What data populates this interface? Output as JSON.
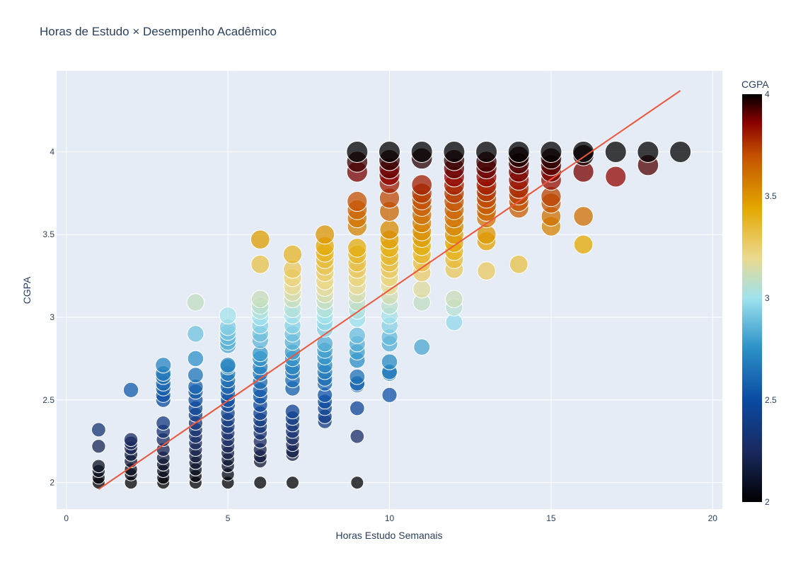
{
  "chart_data": {
    "type": "scatter",
    "title": "Horas de Estudo × Desempenho Acadêmico",
    "xlabel": "Horas Estudo Semanais",
    "ylabel": "CGPA",
    "xlim": [
      -0.3,
      20.3
    ],
    "ylim": [
      1.84,
      4.49
    ],
    "x_ticks": [
      0,
      5,
      10,
      15,
      20
    ],
    "y_ticks": [
      2,
      2.5,
      3,
      3.5,
      4
    ],
    "x_tick_labels": [
      "0",
      "5",
      "10",
      "15",
      "20"
    ],
    "y_tick_labels": [
      "2",
      "2.5",
      "3",
      "3.5",
      "4"
    ],
    "grid": true,
    "colorbar": {
      "title": "CGPA",
      "range": [
        2,
        4
      ],
      "ticks": [
        2,
        2.5,
        3,
        3.5,
        4
      ],
      "tick_labels": [
        "2",
        "2.5",
        "3",
        "3.5",
        "4"
      ],
      "colorscale": [
        [
          0.0,
          "#000000"
        ],
        [
          0.125,
          "#1a2a60"
        ],
        [
          0.25,
          "#0a4aa2"
        ],
        [
          0.38,
          "#2e93c8"
        ],
        [
          0.5,
          "#9fe2ee"
        ],
        [
          0.6,
          "#ecd98e"
        ],
        [
          0.72,
          "#e3a800"
        ],
        [
          0.85,
          "#c45100"
        ],
        [
          0.93,
          "#8c0000"
        ],
        [
          1.0,
          "#000000"
        ]
      ]
    },
    "trendline": {
      "x": [
        1,
        19
      ],
      "y": [
        1.96,
        4.37
      ],
      "color": "#ef553b"
    },
    "colors": {
      "plot_bg": "#e5ecf6",
      "grid": "#ffffff",
      "text": "#2a3f5f"
    },
    "points": [
      [
        1,
        2.0
      ],
      [
        1,
        2.03
      ],
      [
        1,
        2.07
      ],
      [
        1,
        2.1
      ],
      [
        1,
        2.22
      ],
      [
        1,
        2.32
      ],
      [
        2,
        2.0
      ],
      [
        2,
        2.05
      ],
      [
        2,
        2.08
      ],
      [
        2,
        2.13
      ],
      [
        2,
        2.17
      ],
      [
        2,
        2.21
      ],
      [
        2,
        2.24
      ],
      [
        2,
        2.26
      ],
      [
        2,
        2.56
      ],
      [
        3,
        2.0
      ],
      [
        3,
        2.03
      ],
      [
        3,
        2.07
      ],
      [
        3,
        2.11
      ],
      [
        3,
        2.15
      ],
      [
        3,
        2.2
      ],
      [
        3,
        2.26
      ],
      [
        3,
        2.31
      ],
      [
        3,
        2.36
      ],
      [
        3,
        2.5
      ],
      [
        3,
        2.53
      ],
      [
        3,
        2.57
      ],
      [
        3,
        2.6
      ],
      [
        3,
        2.64
      ],
      [
        3,
        2.66
      ],
      [
        3,
        2.71
      ],
      [
        4,
        2.0
      ],
      [
        4,
        2.04
      ],
      [
        4,
        2.08
      ],
      [
        4,
        2.12
      ],
      [
        4,
        2.16
      ],
      [
        4,
        2.2
      ],
      [
        4,
        2.24
      ],
      [
        4,
        2.28
      ],
      [
        4,
        2.32
      ],
      [
        4,
        2.36
      ],
      [
        4,
        2.41
      ],
      [
        4,
        2.45
      ],
      [
        4,
        2.5
      ],
      [
        4,
        2.55
      ],
      [
        4,
        2.58
      ],
      [
        4,
        2.65
      ],
      [
        4,
        2.75
      ],
      [
        4,
        2.9
      ],
      [
        4,
        3.09
      ],
      [
        5,
        2.0
      ],
      [
        5,
        2.05
      ],
      [
        5,
        2.1
      ],
      [
        5,
        2.14
      ],
      [
        5,
        2.18
      ],
      [
        5,
        2.22
      ],
      [
        5,
        2.26
      ],
      [
        5,
        2.3
      ],
      [
        5,
        2.34
      ],
      [
        5,
        2.38
      ],
      [
        5,
        2.42
      ],
      [
        5,
        2.47
      ],
      [
        5,
        2.5
      ],
      [
        5,
        2.54
      ],
      [
        5,
        2.58
      ],
      [
        5,
        2.62
      ],
      [
        5,
        2.66
      ],
      [
        5,
        2.7
      ],
      [
        5,
        2.71
      ],
      [
        5,
        2.83
      ],
      [
        5,
        2.85
      ],
      [
        5,
        2.88
      ],
      [
        5,
        2.91
      ],
      [
        5,
        2.94
      ],
      [
        5,
        3.01
      ],
      [
        6,
        2.0
      ],
      [
        6,
        2.13
      ],
      [
        6,
        2.16
      ],
      [
        6,
        2.2
      ],
      [
        6,
        2.25
      ],
      [
        6,
        2.3
      ],
      [
        6,
        2.34
      ],
      [
        6,
        2.38
      ],
      [
        6,
        2.42
      ],
      [
        6,
        2.47
      ],
      [
        6,
        2.52
      ],
      [
        6,
        2.56
      ],
      [
        6,
        2.61
      ],
      [
        6,
        2.66
      ],
      [
        6,
        2.7
      ],
      [
        6,
        2.75
      ],
      [
        6,
        2.78
      ],
      [
        6,
        2.86
      ],
      [
        6,
        2.9
      ],
      [
        6,
        2.95
      ],
      [
        6,
        3.0
      ],
      [
        6,
        3.04
      ],
      [
        6,
        3.07
      ],
      [
        6,
        3.11
      ],
      [
        6,
        3.32
      ],
      [
        6,
        3.47
      ],
      [
        7,
        2.0
      ],
      [
        7,
        2.17
      ],
      [
        7,
        2.19
      ],
      [
        7,
        2.23
      ],
      [
        7,
        2.27
      ],
      [
        7,
        2.31
      ],
      [
        7,
        2.35
      ],
      [
        7,
        2.39
      ],
      [
        7,
        2.43
      ],
      [
        7,
        2.57
      ],
      [
        7,
        2.62
      ],
      [
        7,
        2.67
      ],
      [
        7,
        2.7
      ],
      [
        7,
        2.75
      ],
      [
        7,
        2.79
      ],
      [
        7,
        2.85
      ],
      [
        7,
        2.9
      ],
      [
        7,
        2.95
      ],
      [
        7,
        3.01
      ],
      [
        7,
        3.05
      ],
      [
        7,
        3.11
      ],
      [
        7,
        3.15
      ],
      [
        7,
        3.19
      ],
      [
        7,
        3.24
      ],
      [
        7,
        3.29
      ],
      [
        7,
        3.38
      ],
      [
        8,
        2.37
      ],
      [
        8,
        2.4
      ],
      [
        8,
        2.45
      ],
      [
        8,
        2.49
      ],
      [
        8,
        2.53
      ],
      [
        8,
        2.6
      ],
      [
        8,
        2.63
      ],
      [
        8,
        2.67
      ],
      [
        8,
        2.71
      ],
      [
        8,
        2.76
      ],
      [
        8,
        2.8
      ],
      [
        8,
        2.84
      ],
      [
        8,
        2.93
      ],
      [
        8,
        2.97
      ],
      [
        8,
        3.01
      ],
      [
        8,
        3.05
      ],
      [
        8,
        3.1
      ],
      [
        8,
        3.14
      ],
      [
        8,
        3.18
      ],
      [
        8,
        3.22
      ],
      [
        8,
        3.27
      ],
      [
        8,
        3.31
      ],
      [
        8,
        3.35
      ],
      [
        8,
        3.39
      ],
      [
        8,
        3.43
      ],
      [
        8,
        3.5
      ],
      [
        9,
        2.0
      ],
      [
        9,
        2.28
      ],
      [
        9,
        2.45
      ],
      [
        9,
        2.59
      ],
      [
        9,
        2.6
      ],
      [
        9,
        2.64
      ],
      [
        9,
        2.74
      ],
      [
        9,
        2.79
      ],
      [
        9,
        2.84
      ],
      [
        9,
        2.89
      ],
      [
        9,
        2.99
      ],
      [
        9,
        3.04
      ],
      [
        9,
        3.09
      ],
      [
        9,
        3.14
      ],
      [
        9,
        3.19
      ],
      [
        9,
        3.24
      ],
      [
        9,
        3.29
      ],
      [
        9,
        3.33
      ],
      [
        9,
        3.38
      ],
      [
        9,
        3.42
      ],
      [
        9,
        3.55
      ],
      [
        9,
        3.6
      ],
      [
        9,
        3.65
      ],
      [
        9,
        3.7
      ],
      [
        9,
        3.88
      ],
      [
        9,
        3.94
      ],
      [
        9,
        4.0
      ],
      [
        10,
        2.53
      ],
      [
        10,
        2.66
      ],
      [
        10,
        2.67
      ],
      [
        10,
        2.73
      ],
      [
        10,
        2.84
      ],
      [
        10,
        2.88
      ],
      [
        10,
        2.95
      ],
      [
        10,
        3.01
      ],
      [
        10,
        3.07
      ],
      [
        10,
        3.13
      ],
      [
        10,
        3.19
      ],
      [
        10,
        3.24
      ],
      [
        10,
        3.29
      ],
      [
        10,
        3.33
      ],
      [
        10,
        3.37
      ],
      [
        10,
        3.42
      ],
      [
        10,
        3.47
      ],
      [
        10,
        3.53
      ],
      [
        10,
        3.64
      ],
      [
        10,
        3.72
      ],
      [
        10,
        3.81
      ],
      [
        10,
        3.86
      ],
      [
        10,
        3.9
      ],
      [
        10,
        3.95
      ],
      [
        10,
        4.0
      ],
      [
        11,
        2.82
      ],
      [
        11,
        3.09
      ],
      [
        11,
        3.17
      ],
      [
        11,
        3.27
      ],
      [
        11,
        3.33
      ],
      [
        11,
        3.38
      ],
      [
        11,
        3.43
      ],
      [
        11,
        3.48
      ],
      [
        11,
        3.52
      ],
      [
        11,
        3.57
      ],
      [
        11,
        3.62
      ],
      [
        11,
        3.67
      ],
      [
        11,
        3.71
      ],
      [
        11,
        3.75
      ],
      [
        11,
        3.8
      ],
      [
        11,
        3.96
      ],
      [
        11,
        4.0
      ],
      [
        12,
        2.97
      ],
      [
        12,
        3.06
      ],
      [
        12,
        3.11
      ],
      [
        12,
        3.29
      ],
      [
        12,
        3.35
      ],
      [
        12,
        3.4
      ],
      [
        12,
        3.45
      ],
      [
        12,
        3.5
      ],
      [
        12,
        3.55
      ],
      [
        12,
        3.6
      ],
      [
        12,
        3.65
      ],
      [
        12,
        3.7
      ],
      [
        12,
        3.75
      ],
      [
        12,
        3.8
      ],
      [
        12,
        3.85
      ],
      [
        12,
        3.9
      ],
      [
        12,
        3.95
      ],
      [
        12,
        4.0
      ],
      [
        13,
        3.28
      ],
      [
        13,
        3.46
      ],
      [
        13,
        3.5
      ],
      [
        13,
        3.6
      ],
      [
        13,
        3.64
      ],
      [
        13,
        3.68
      ],
      [
        13,
        3.72
      ],
      [
        13,
        3.76
      ],
      [
        13,
        3.8
      ],
      [
        13,
        3.85
      ],
      [
        13,
        3.9
      ],
      [
        13,
        3.94
      ],
      [
        13,
        4.0
      ],
      [
        14,
        3.32
      ],
      [
        14,
        3.66
      ],
      [
        14,
        3.7
      ],
      [
        14,
        3.74
      ],
      [
        14,
        3.78
      ],
      [
        14,
        3.83
      ],
      [
        14,
        3.88
      ],
      [
        14,
        3.93
      ],
      [
        14,
        3.97
      ],
      [
        14,
        4.0
      ],
      [
        15,
        3.55
      ],
      [
        15,
        3.61
      ],
      [
        15,
        3.69
      ],
      [
        15,
        3.73
      ],
      [
        15,
        3.83
      ],
      [
        15,
        3.88
      ],
      [
        15,
        3.92
      ],
      [
        15,
        3.96
      ],
      [
        15,
        4.0
      ],
      [
        16,
        3.44
      ],
      [
        16,
        3.61
      ],
      [
        16,
        3.88
      ],
      [
        16,
        3.98
      ],
      [
        16,
        4.0
      ],
      [
        17,
        3.85
      ],
      [
        17,
        4.0
      ],
      [
        18,
        3.92
      ],
      [
        18,
        4.0
      ],
      [
        19,
        4.0
      ]
    ]
  }
}
